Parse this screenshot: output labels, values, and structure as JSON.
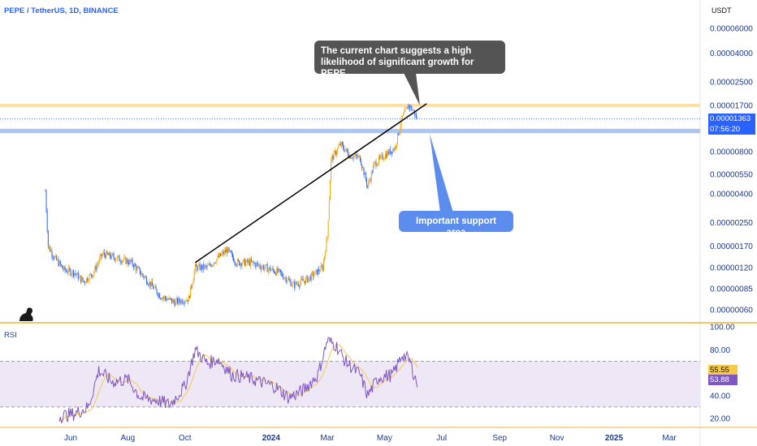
{
  "header": {
    "title": "PEPE / TetherUS, 1D, BINANCE",
    "currency": "USDT"
  },
  "chart_data": {
    "type": "candlestick",
    "title": "PEPE / TetherUS, 1D, BINANCE",
    "price_axis_labels": [
      "0.00006000",
      "0.00004000",
      "0.00002500",
      "0.00001700",
      "0.00001363",
      "0.00000800",
      "0.00000550",
      "0.00000400",
      "0.00000250",
      "0.00000170",
      "0.00000120",
      "0.00000085",
      "0.00000060"
    ],
    "price_scale": "log",
    "current_price": "0.00001363",
    "countdown": "07:56:20",
    "time_axis_labels": [
      "Jun",
      "Aug",
      "Oct",
      "2024",
      "Mar",
      "May",
      "Jul",
      "Sep",
      "Nov",
      "2025",
      "Mar"
    ],
    "resistance_level": 1.7e-05,
    "support_zone": [
      1.08e-05,
      1.16e-05
    ],
    "price_series": [
      [
        "2023-05-05",
        4.2e-06
      ],
      [
        "2023-05-08",
        1.7e-06
      ],
      [
        "2023-05-15",
        1.4e-06
      ],
      [
        "2023-05-25",
        1.15e-06
      ],
      [
        "2023-06-05",
        1.1e-06
      ],
      [
        "2023-06-15",
        9.5e-07
      ],
      [
        "2023-06-25",
        1.1e-06
      ],
      [
        "2023-07-05",
        1.5e-06
      ],
      [
        "2023-07-20",
        1.4e-06
      ],
      [
        "2023-08-05",
        1.3e-06
      ],
      [
        "2023-08-20",
        1e-06
      ],
      [
        "2023-09-05",
        7.5e-07
      ],
      [
        "2023-09-20",
        6.8e-07
      ],
      [
        "2023-10-05",
        7.2e-07
      ],
      [
        "2023-10-12",
        1.2e-06
      ],
      [
        "2023-10-25",
        1.2e-06
      ],
      [
        "2023-11-05",
        1.4e-06
      ],
      [
        "2023-11-15",
        1.6e-06
      ],
      [
        "2023-11-25",
        1.3e-06
      ],
      [
        "2023-12-10",
        1.3e-06
      ],
      [
        "2023-12-25",
        1.2e-06
      ],
      [
        "2024-01-10",
        1.1e-06
      ],
      [
        "2024-01-25",
        9e-07
      ],
      [
        "2024-02-10",
        1e-06
      ],
      [
        "2024-02-25",
        1.2e-06
      ],
      [
        "2024-03-01",
        2e-06
      ],
      [
        "2024-03-05",
        7e-06
      ],
      [
        "2024-03-15",
        9e-06
      ],
      [
        "2024-03-25",
        7.5e-06
      ],
      [
        "2024-04-05",
        7.2e-06
      ],
      [
        "2024-04-13",
        4.5e-06
      ],
      [
        "2024-04-20",
        6.5e-06
      ],
      [
        "2024-05-01",
        7.5e-06
      ],
      [
        "2024-05-12",
        8.5e-06
      ],
      [
        "2024-05-20",
        1.4e-05
      ],
      [
        "2024-05-27",
        1.7e-05
      ],
      [
        "2024-06-01",
        1.55e-05
      ],
      [
        "2024-06-05",
        1.36e-05
      ]
    ],
    "trendline": [
      [
        "2023-10-12",
        1.3e-06
      ],
      [
        "2024-06-15",
        1.75e-05
      ]
    ],
    "annotations": [
      "The current chart suggests a high likelihood of significant growth for PEPE.",
      "Important support area"
    ],
    "rsi": {
      "label": "RSI",
      "axis_labels": [
        "100.00",
        "80.00",
        "40.00",
        "20.00"
      ],
      "levels": [
        70,
        30
      ],
      "value": "53.88",
      "ma_value": "55.55",
      "series": [
        [
          "2023-05-20",
          22
        ],
        [
          "2023-06-05",
          24
        ],
        [
          "2023-06-20",
          30
        ],
        [
          "2023-07-01",
          62
        ],
        [
          "2023-07-15",
          52
        ],
        [
          "2023-08-01",
          54
        ],
        [
          "2023-08-15",
          38
        ],
        [
          "2023-09-01",
          36
        ],
        [
          "2023-09-15",
          32
        ],
        [
          "2023-10-01",
          48
        ],
        [
          "2023-10-12",
          80
        ],
        [
          "2023-10-25",
          68
        ],
        [
          "2023-11-05",
          72
        ],
        [
          "2023-11-20",
          58
        ],
        [
          "2023-12-05",
          56
        ],
        [
          "2023-12-20",
          52
        ],
        [
          "2024-01-05",
          48
        ],
        [
          "2024-01-20",
          38
        ],
        [
          "2024-02-05",
          45
        ],
        [
          "2024-02-20",
          58
        ],
        [
          "2024-03-01",
          88
        ],
        [
          "2024-03-10",
          84
        ],
        [
          "2024-03-20",
          70
        ],
        [
          "2024-04-05",
          58
        ],
        [
          "2024-04-13",
          40
        ],
        [
          "2024-04-25",
          56
        ],
        [
          "2024-05-10",
          58
        ],
        [
          "2024-05-20",
          76
        ],
        [
          "2024-05-28",
          70
        ],
        [
          "2024-06-05",
          50
        ]
      ]
    }
  },
  "colors": {
    "candle_up": "#f7a600",
    "candle_down": "#2962ff",
    "resistance": "#ffe0a3",
    "support_zone": "#a9c6f5",
    "rsi_line": "#7e57c2",
    "rsi_ma": "#f7c948",
    "rsi_band": "#ede7f6"
  }
}
